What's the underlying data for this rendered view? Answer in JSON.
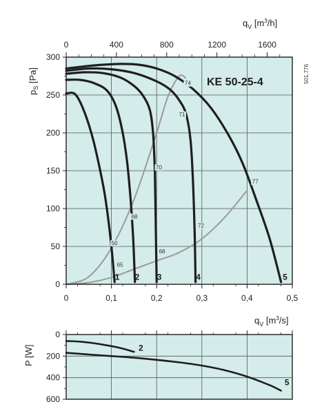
{
  "colors": {
    "panel_bg": "#d4ecea",
    "grid": "#555555",
    "frame": "#1e1e1e",
    "fan_curve": "#1e1e1e",
    "system_curve": "#9a9a9a"
  },
  "chart_data": [
    {
      "type": "line",
      "title": "KE  50-25-4",
      "code": "501,776",
      "ylabel": {
        "base": "p",
        "sub": "S",
        "unit": " [Pa]"
      },
      "xlabel_bottom": {
        "base": "q",
        "sub": "V",
        "unit_pre": " [m",
        "sup": "3",
        "unit_post": "/s]"
      },
      "xlabel_top": {
        "base": "q",
        "sub": "V",
        "unit_pre": " [m",
        "sup": "3",
        "unit_post": "/h]"
      },
      "xlim": [
        0,
        0.5
      ],
      "ylim": [
        0,
        300
      ],
      "xlim_top": [
        0,
        1800
      ],
      "xticks": [
        {
          "v": 0,
          "label": "0"
        },
        {
          "v": 0.1,
          "label": "0,1"
        },
        {
          "v": 0.2,
          "label": "0,2"
        },
        {
          "v": 0.3,
          "label": "0,3"
        },
        {
          "v": 0.4,
          "label": "0,4"
        },
        {
          "v": 0.5,
          "label": "0,5"
        }
      ],
      "xticks_top": [
        {
          "v": 0,
          "label": "0"
        },
        {
          "v": 400,
          "label": "400"
        },
        {
          "v": 800,
          "label": "800"
        },
        {
          "v": 1200,
          "label": "1200"
        },
        {
          "v": 1600,
          "label": "1600"
        }
      ],
      "yticks": [
        {
          "v": 0,
          "label": "0"
        },
        {
          "v": 50,
          "label": "50"
        },
        {
          "v": 100,
          "label": "100"
        },
        {
          "v": 150,
          "label": "150"
        },
        {
          "v": 200,
          "label": "200"
        },
        {
          "v": 250,
          "label": "250"
        },
        {
          "v": 300,
          "label": "300"
        }
      ],
      "grid": true,
      "series": [
        {
          "name": "1",
          "x": [
            0,
            0.02,
            0.04,
            0.06,
            0.08,
            0.09,
            0.1,
            0.107
          ],
          "y": [
            252,
            251,
            228,
            190,
            136,
            100,
            50,
            3
          ]
        },
        {
          "name": "2",
          "x": [
            0,
            0.03,
            0.06,
            0.09,
            0.11,
            0.125,
            0.135,
            0.142,
            0.148,
            0.152
          ],
          "y": [
            270,
            270,
            266,
            256,
            235,
            200,
            160,
            115,
            62,
            3
          ]
        },
        {
          "name": "3",
          "x": [
            0,
            0.04,
            0.08,
            0.12,
            0.15,
            0.17,
            0.185,
            0.192,
            0.196,
            0.198,
            0.2
          ],
          "y": [
            278,
            280,
            279,
            273,
            262,
            249,
            230,
            200,
            150,
            80,
            3
          ]
        },
        {
          "name": "4",
          "x": [
            0,
            0.05,
            0.1,
            0.15,
            0.2,
            0.23,
            0.25,
            0.265,
            0.275,
            0.28,
            0.284,
            0.286
          ],
          "y": [
            282,
            285,
            284,
            279,
            268,
            257,
            243,
            225,
            190,
            140,
            70,
            3
          ]
        },
        {
          "name": "5",
          "x": [
            0,
            0.06,
            0.12,
            0.16,
            0.2,
            0.24,
            0.28,
            0.32,
            0.36,
            0.39,
            0.42,
            0.45,
            0.475
          ],
          "y": [
            285,
            289,
            291,
            290,
            285,
            275,
            258,
            233,
            196,
            160,
            112,
            60,
            3
          ]
        }
      ],
      "system_curves": [
        {
          "x": [
            0,
            0.05,
            0.1,
            0.15,
            0.2,
            0.225,
            0.25,
            0.265
          ],
          "y": [
            0,
            10,
            48,
            112,
            200,
            248,
            275,
            272
          ]
        },
        {
          "x": [
            0,
            0.05,
            0.1,
            0.15,
            0.2,
            0.25,
            0.3,
            0.35,
            0.4
          ],
          "y": [
            0,
            2.3,
            9,
            20,
            31,
            42,
            60,
            88,
            124
          ]
        }
      ],
      "curve_labels": [
        {
          "x": 0.113,
          "y": 6,
          "label": "1"
        },
        {
          "x": 0.157,
          "y": 6,
          "label": "2"
        },
        {
          "x": 0.206,
          "y": 6,
          "label": "3"
        },
        {
          "x": 0.292,
          "y": 6,
          "label": "4"
        },
        {
          "x": 0.484,
          "y": 6,
          "label": "5"
        }
      ],
      "efficiency_labels": [
        {
          "x": 0.269,
          "y": 263,
          "label": "74"
        },
        {
          "x": 0.256,
          "y": 222,
          "label": "71"
        },
        {
          "x": 0.205,
          "y": 152,
          "label": "70"
        },
        {
          "x": 0.151,
          "y": 87,
          "label": "68"
        },
        {
          "x": 0.107,
          "y": 52,
          "label": "50"
        },
        {
          "x": 0.212,
          "y": 41,
          "label": "68"
        },
        {
          "x": 0.119,
          "y": 23,
          "label": "65"
        },
        {
          "x": 0.298,
          "y": 75,
          "label": "72"
        },
        {
          "x": 0.418,
          "y": 133,
          "label": "77"
        }
      ]
    },
    {
      "type": "line",
      "ylabel": "P [W]",
      "xlabel": {
        "base": "q",
        "sub": "V",
        "unit_pre": " [m",
        "sup": "3",
        "unit_post": "/s]"
      },
      "xlim": [
        0,
        0.5
      ],
      "ylim": [
        0,
        600
      ],
      "y_inverted": true,
      "yticks": [
        {
          "v": 0,
          "label": "0"
        },
        {
          "v": 200,
          "label": "200"
        },
        {
          "v": 400,
          "label": "400"
        },
        {
          "v": 600,
          "label": "600"
        }
      ],
      "grid": true,
      "series": [
        {
          "name": "2",
          "x": [
            0,
            0.03,
            0.06,
            0.09,
            0.12,
            0.15
          ],
          "y": [
            60,
            66,
            80,
            100,
            125,
            160
          ]
        },
        {
          "name": "5",
          "x": [
            0,
            0.05,
            0.1,
            0.15,
            0.2,
            0.25,
            0.3,
            0.35,
            0.4,
            0.45,
            0.475
          ],
          "y": [
            170,
            185,
            200,
            215,
            235,
            258,
            288,
            330,
            390,
            470,
            520
          ]
        }
      ],
      "curve_labels": [
        {
          "x": 0.16,
          "y": 150,
          "label": "2"
        },
        {
          "x": 0.483,
          "y": 470,
          "label": "5"
        }
      ]
    }
  ]
}
